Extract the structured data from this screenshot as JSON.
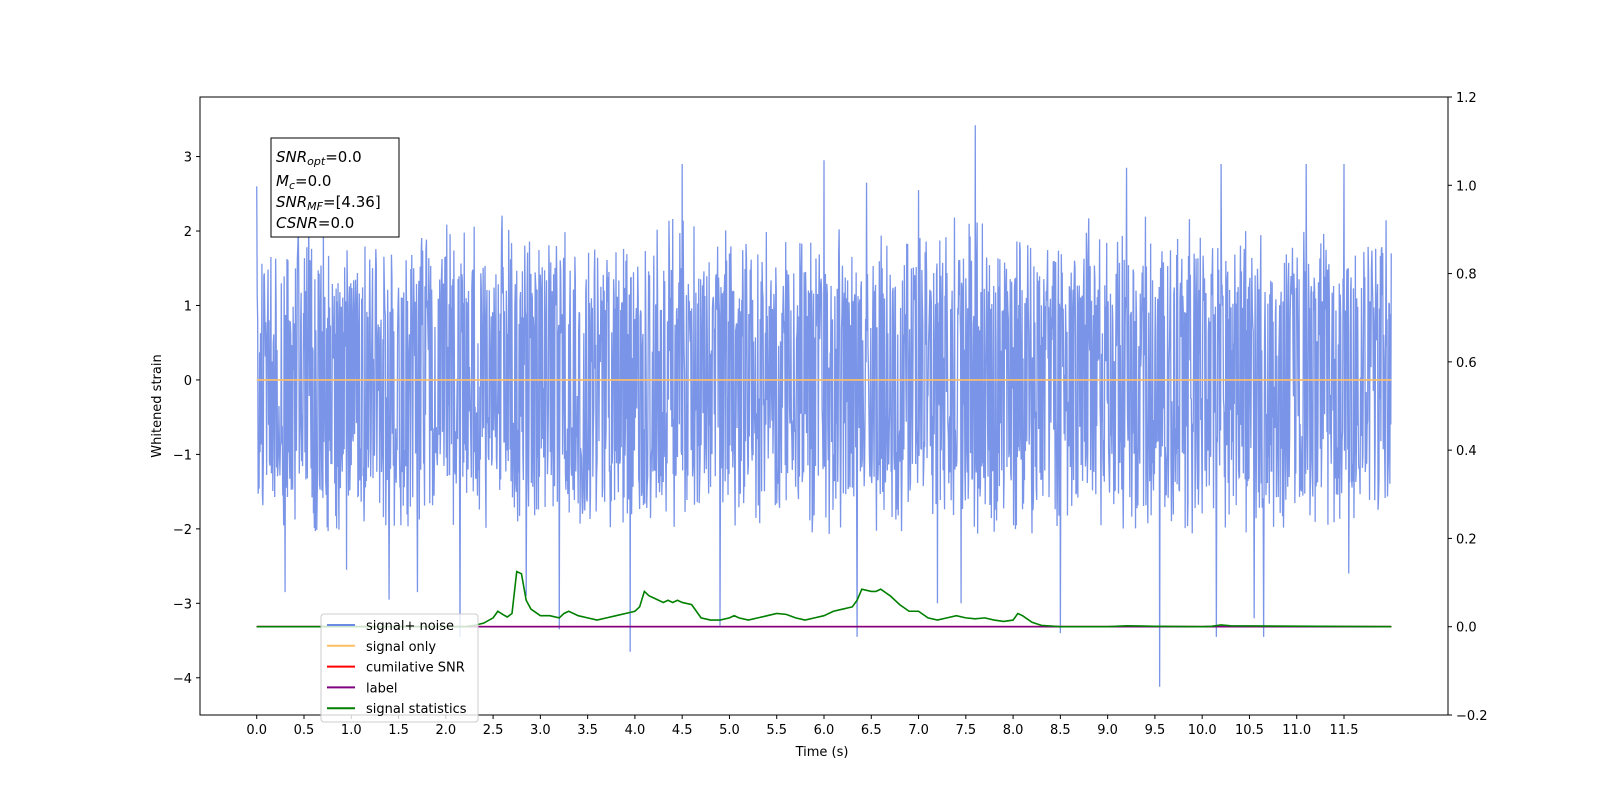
{
  "chart_data": {
    "type": "line",
    "xlabel": "Time (s)",
    "ylabel": "Whitened strain",
    "ylabel_right": "",
    "xlim": [
      -0.6,
      12.6
    ],
    "ylim": [
      -4.5,
      3.8
    ],
    "ylim_right": [
      -0.2,
      1.2
    ],
    "x_ticks": [
      "0.0",
      "0.5",
      "1.0",
      "1.5",
      "2.0",
      "2.5",
      "3.0",
      "3.5",
      "4.0",
      "4.5",
      "5.0",
      "5.5",
      "6.0",
      "6.5",
      "7.0",
      "7.5",
      "8.0",
      "8.5",
      "9.0",
      "9.5",
      "10.0",
      "10.5",
      "11.0",
      "11.5"
    ],
    "y_ticks_left": [
      "3",
      "2",
      "1",
      "0",
      "−1",
      "−2",
      "−3",
      "−4"
    ],
    "y_ticks_right": [
      "1.2",
      "1.0",
      "0.8",
      "0.6",
      "0.4",
      "0.2",
      "0.0",
      "−0.2"
    ],
    "grid": false,
    "legend_position": "lower-left",
    "annotation": {
      "snr_opt": "=0.0",
      "mc": "=0.0",
      "snr_mf": "=[4.36]",
      "csnr": "=0.0"
    },
    "series": [
      {
        "name": "signal+ noise",
        "axis": "left",
        "color": "#6b8ae6",
        "description_values": {
          "x_range": [
            0.0,
            12.0
          ],
          "envelope_upper": 2.3,
          "envelope_lower": -2.1,
          "spikes": [
            [
              0.0,
              2.6
            ],
            [
              0.3,
              -2.85
            ],
            [
              0.55,
              2.5
            ],
            [
              0.95,
              -2.55
            ],
            [
              1.4,
              -2.95
            ],
            [
              1.7,
              -2.85
            ],
            [
              2.15,
              -3.45
            ],
            [
              2.85,
              -2.9
            ],
            [
              3.2,
              -3.35
            ],
            [
              3.95,
              -3.65
            ],
            [
              4.5,
              2.9
            ],
            [
              4.9,
              -3.3
            ],
            [
              6.0,
              2.95
            ],
            [
              6.35,
              -3.45
            ],
            [
              6.45,
              2.65
            ],
            [
              7.0,
              2.55
            ],
            [
              7.2,
              -3.0
            ],
            [
              7.6,
              3.42
            ],
            [
              7.45,
              -3.0
            ],
            [
              8.5,
              -3.4
            ],
            [
              9.2,
              2.85
            ],
            [
              9.55,
              -4.12
            ],
            [
              10.15,
              -3.45
            ],
            [
              10.2,
              2.9
            ],
            [
              10.55,
              -3.2
            ],
            [
              10.65,
              -3.45
            ],
            [
              11.1,
              2.9
            ],
            [
              11.5,
              2.9
            ],
            [
              11.55,
              -2.6
            ]
          ]
        }
      },
      {
        "name": "signal only",
        "axis": "left",
        "color": "#ffbf66",
        "x": [
          0.0,
          12.0
        ],
        "y": [
          0.0,
          0.0
        ]
      },
      {
        "name": "cumilative SNR",
        "axis": "right",
        "color": "#ff0000",
        "x": [
          0.0,
          12.0
        ],
        "y": [
          0.0,
          0.0
        ]
      },
      {
        "name": "label",
        "axis": "right",
        "color": "#800080",
        "x": [
          0.0,
          12.0
        ],
        "y": [
          0.0,
          0.0
        ]
      },
      {
        "name": "signal statistics",
        "axis": "right",
        "color": "#008000",
        "x": [
          0.0,
          2.2,
          2.3,
          2.4,
          2.5,
          2.55,
          2.6,
          2.65,
          2.7,
          2.75,
          2.8,
          2.85,
          2.9,
          3.0,
          3.1,
          3.2,
          3.25,
          3.3,
          3.4,
          3.5,
          3.6,
          3.7,
          3.8,
          3.9,
          4.0,
          4.05,
          4.1,
          4.15,
          4.2,
          4.3,
          4.35,
          4.4,
          4.45,
          4.5,
          4.6,
          4.7,
          4.8,
          4.9,
          5.0,
          5.05,
          5.1,
          5.2,
          5.3,
          5.4,
          5.5,
          5.6,
          5.7,
          5.8,
          5.9,
          6.0,
          6.1,
          6.2,
          6.3,
          6.35,
          6.4,
          6.5,
          6.55,
          6.6,
          6.7,
          6.8,
          6.9,
          7.0,
          7.1,
          7.2,
          7.3,
          7.4,
          7.5,
          7.6,
          7.7,
          7.8,
          7.9,
          8.0,
          8.05,
          8.1,
          8.2,
          8.3,
          8.5,
          9.0,
          9.2,
          9.5,
          10.0,
          10.1,
          10.2,
          10.3,
          12.0
        ],
        "y": [
          0.0,
          0.0,
          0.003,
          0.008,
          0.02,
          0.035,
          0.028,
          0.022,
          0.03,
          0.125,
          0.12,
          0.06,
          0.04,
          0.025,
          0.025,
          0.02,
          0.03,
          0.035,
          0.025,
          0.02,
          0.015,
          0.02,
          0.025,
          0.03,
          0.035,
          0.045,
          0.08,
          0.07,
          0.065,
          0.055,
          0.06,
          0.055,
          0.06,
          0.055,
          0.05,
          0.02,
          0.015,
          0.015,
          0.02,
          0.025,
          0.02,
          0.015,
          0.02,
          0.025,
          0.03,
          0.028,
          0.02,
          0.015,
          0.02,
          0.025,
          0.035,
          0.04,
          0.045,
          0.06,
          0.085,
          0.08,
          0.08,
          0.085,
          0.07,
          0.05,
          0.035,
          0.035,
          0.02,
          0.015,
          0.02,
          0.025,
          0.02,
          0.018,
          0.02,
          0.015,
          0.012,
          0.015,
          0.03,
          0.025,
          0.01,
          0.003,
          0.0,
          0.0,
          0.002,
          0.001,
          0.0,
          0.001,
          0.004,
          0.002,
          0.0
        ]
      }
    ]
  }
}
